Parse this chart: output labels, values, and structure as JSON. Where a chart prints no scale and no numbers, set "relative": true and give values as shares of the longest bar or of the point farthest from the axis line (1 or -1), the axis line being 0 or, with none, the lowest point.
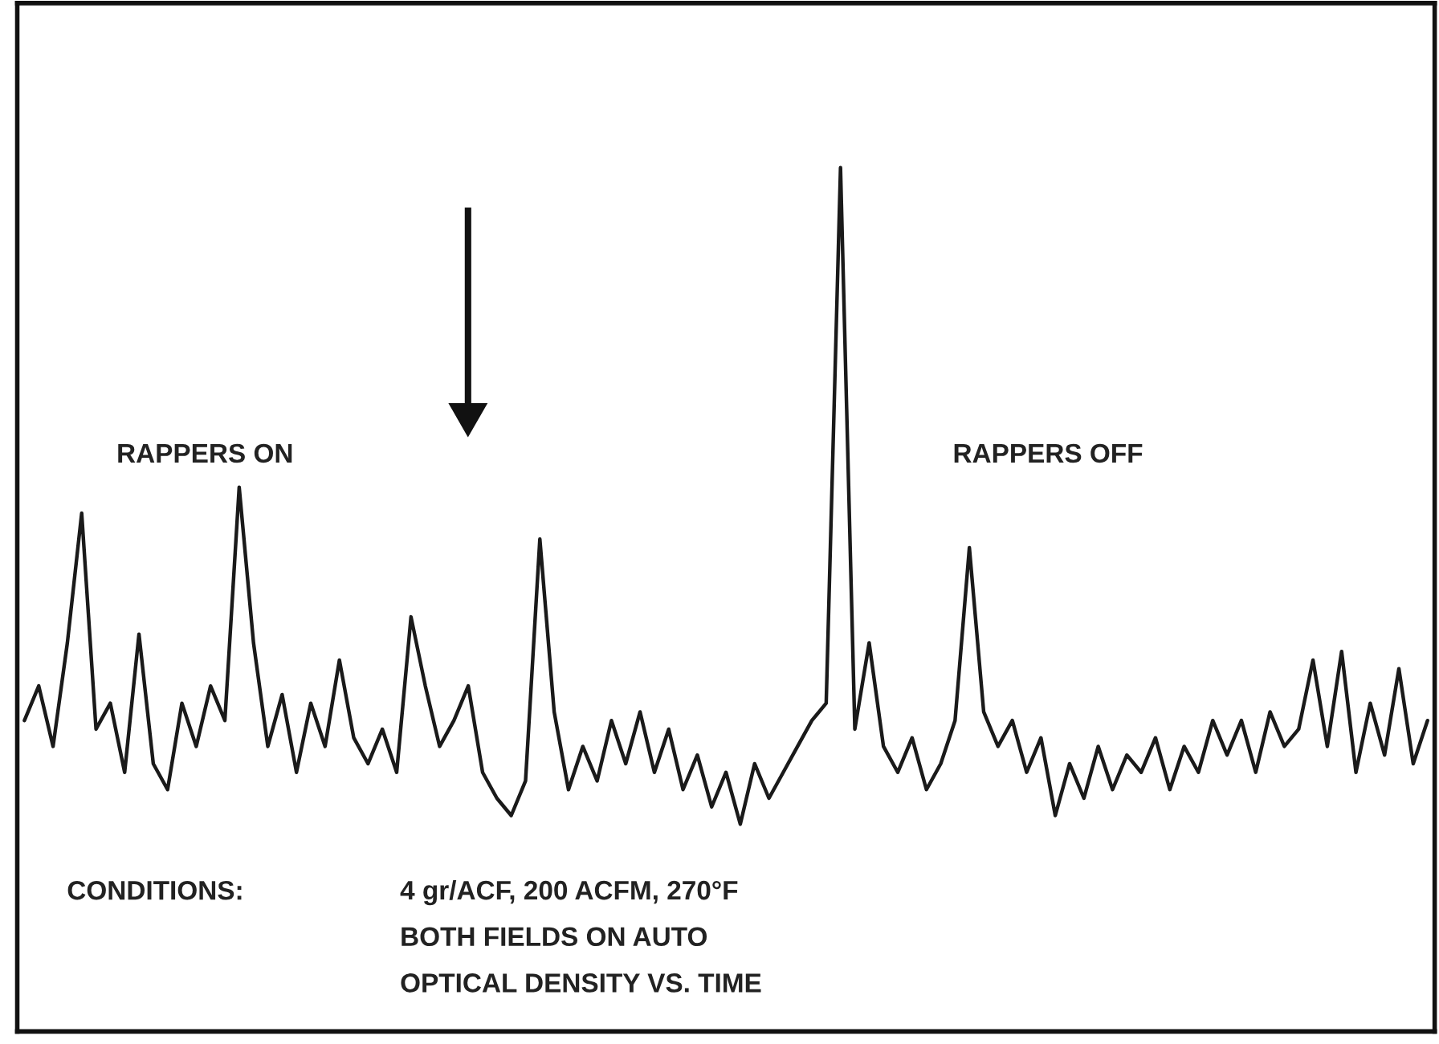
{
  "chart_data": {
    "type": "line",
    "relative": true,
    "color": "#1a1a1a",
    "categories": [
      null,
      null,
      null,
      null,
      null,
      null,
      null,
      null,
      null,
      null,
      null,
      null,
      null,
      null,
      null,
      null,
      null,
      null,
      null,
      null,
      null,
      null,
      null,
      null,
      null,
      null,
      null,
      null,
      null,
      null,
      null,
      null,
      null,
      null,
      null,
      null,
      null,
      null,
      null,
      null,
      null,
      null,
      null,
      null,
      null,
      null,
      null,
      null,
      null,
      null,
      null,
      null,
      null,
      null,
      null,
      null,
      null,
      null,
      null,
      null,
      null,
      null,
      null,
      null,
      null,
      null,
      null,
      null,
      null,
      null,
      null,
      null,
      null,
      null,
      null,
      null,
      null,
      null,
      null,
      null,
      null,
      null,
      null,
      null,
      null,
      null,
      null,
      null,
      null,
      null,
      null,
      null,
      null,
      null,
      null,
      null,
      null,
      null,
      null
    ],
    "values": [
      0.36,
      0.4,
      0.33,
      0.45,
      0.6,
      0.35,
      0.38,
      0.3,
      0.46,
      0.31,
      0.28,
      0.38,
      0.33,
      0.4,
      0.36,
      0.63,
      0.45,
      0.33,
      0.39,
      0.3,
      0.38,
      0.33,
      0.43,
      0.34,
      0.31,
      0.35,
      0.3,
      0.48,
      0.4,
      0.33,
      0.36,
      0.4,
      0.3,
      0.27,
      0.25,
      0.29,
      0.57,
      0.37,
      0.28,
      0.33,
      0.29,
      0.36,
      0.31,
      0.37,
      0.3,
      0.35,
      0.28,
      0.32,
      0.26,
      0.3,
      0.24,
      0.31,
      0.27,
      0.3,
      0.33,
      0.36,
      0.38,
      1.0,
      0.35,
      0.45,
      0.33,
      0.3,
      0.34,
      0.28,
      0.31,
      0.36,
      0.56,
      0.37,
      0.33,
      0.36,
      0.3,
      0.34,
      0.25,
      0.31,
      0.27,
      0.33,
      0.28,
      0.32,
      0.3,
      0.34,
      0.28,
      0.33,
      0.3,
      0.36,
      0.32,
      0.36,
      0.3,
      0.37,
      0.33,
      0.35,
      0.43,
      0.33,
      0.44,
      0.3,
      0.38,
      0.32,
      0.42,
      0.31,
      0.36
    ],
    "annotations": [
      "RAPPERS ON",
      "RAPPERS OFF",
      "CONDITIONS:",
      "4 gr/ACF, 200 ACFM, 270°F",
      "BOTH FIELDS ON AUTO",
      "OPTICAL DENSITY VS. TIME"
    ]
  }
}
